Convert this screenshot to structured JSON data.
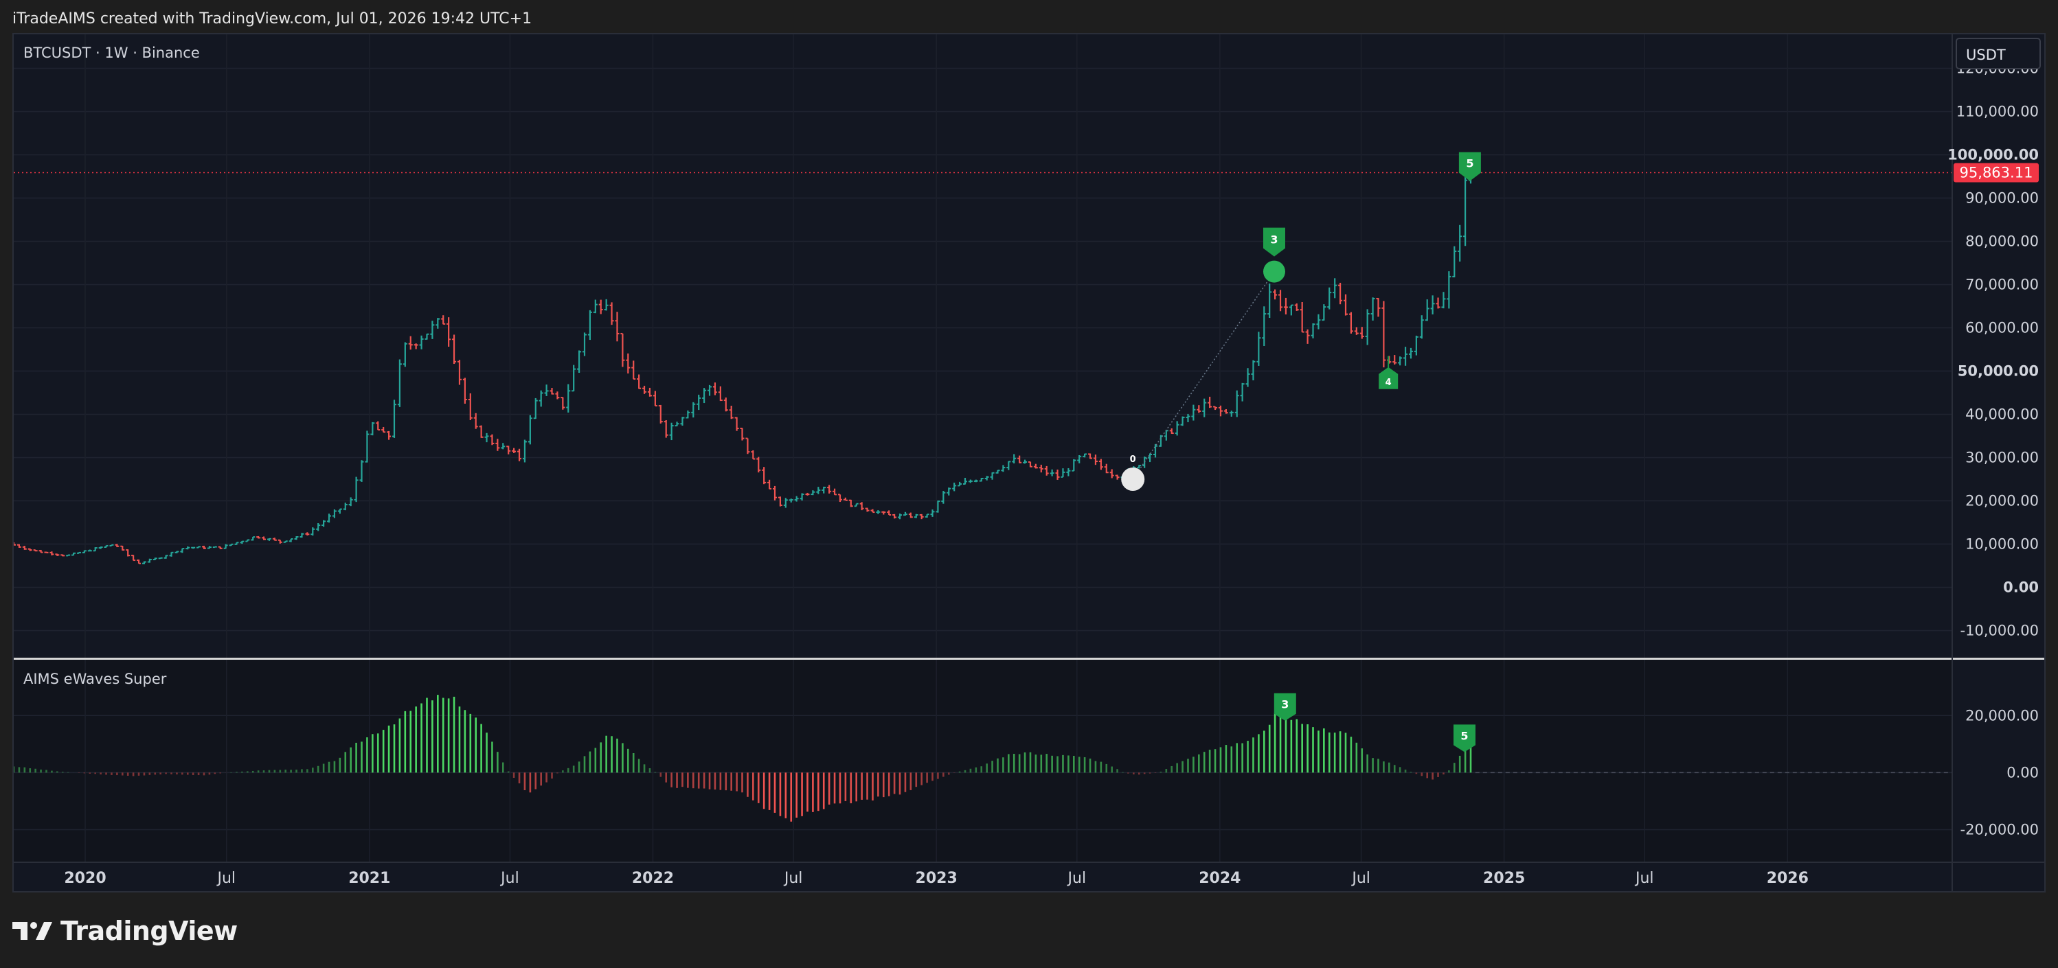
{
  "header": {
    "text": "iTradeAIMS created with TradingView.com, Jul 01, 2026 19:42 UTC+1"
  },
  "footer": {
    "logo_text": "TradingView",
    "logo_icon": "tradingview-logo-icon"
  },
  "main_pane": {
    "symbol_label": "BTCUSDT · 1W · Binance",
    "currency_button": "USDT",
    "price_axis": [
      "120,000.00",
      "110,000.00",
      "100,000.00",
      "90,000.00",
      "80,000.00",
      "70,000.00",
      "60,000.00",
      "50,000.00",
      "40,000.00",
      "30,000.00",
      "20,000.00",
      "10,000.00",
      "0.00",
      "-10,000.00"
    ],
    "last_price": "95,863.11",
    "colors": {
      "up": "#26a69a",
      "down": "#ef5350",
      "wave_marker": "#1e9e4a",
      "origin_marker": "#e8e8e8",
      "last_price_badge": "#f23645"
    }
  },
  "indicator_pane": {
    "title": "AIMS eWaves Super",
    "axis": [
      "20,000.00",
      "0.00",
      "-20,000.00"
    ],
    "colors": {
      "positive": "#4cd964",
      "negative": "#ef5350"
    }
  },
  "time_axis": [
    "2020",
    "Jul",
    "2021",
    "Jul",
    "2022",
    "Jul",
    "2023",
    "Jul",
    "2024",
    "Jul",
    "2025",
    "Jul",
    "2026"
  ],
  "chart_data": [
    {
      "type": "candlestick",
      "symbol": "BTCUSDT",
      "interval": "1W",
      "exchange": "Binance",
      "x_range": [
        "2019-10-01",
        "2026-08-01"
      ],
      "y_range": [
        -15000,
        125000
      ],
      "path_points": [
        [
          "2019-10-01",
          10200
        ],
        [
          "2019-11-01",
          8500
        ],
        [
          "2019-12-15",
          7300
        ],
        [
          "2020-01-20",
          8900
        ],
        [
          "2020-02-15",
          10000
        ],
        [
          "2020-03-15",
          5500
        ],
        [
          "2020-04-15",
          7000
        ],
        [
          "2020-05-15",
          9200
        ],
        [
          "2020-07-01",
          9200
        ],
        [
          "2020-08-15",
          11800
        ],
        [
          "2020-09-15",
          10500
        ],
        [
          "2020-10-20",
          12500
        ],
        [
          "2020-11-15",
          16000
        ],
        [
          "2020-12-15",
          20000
        ],
        [
          "2021-01-10",
          38000
        ],
        [
          "2021-02-01",
          34000
        ],
        [
          "2021-02-20",
          55000
        ],
        [
          "2021-03-15",
          58000
        ],
        [
          "2021-04-15",
          62000
        ],
        [
          "2021-05-20",
          37000
        ],
        [
          "2021-06-20",
          33000
        ],
        [
          "2021-07-20",
          30000
        ],
        [
          "2021-08-15",
          46000
        ],
        [
          "2021-09-15",
          42000
        ],
        [
          "2021-10-20",
          64000
        ],
        [
          "2021-11-10",
          67000
        ],
        [
          "2021-12-05",
          50000
        ],
        [
          "2022-01-10",
          42000
        ],
        [
          "2022-01-25",
          36000
        ],
        [
          "2022-03-25",
          47000
        ],
        [
          "2022-05-15",
          30000
        ],
        [
          "2022-06-18",
          19000
        ],
        [
          "2022-08-15",
          23500
        ],
        [
          "2022-09-15",
          19500
        ],
        [
          "2022-11-10",
          16500
        ],
        [
          "2022-12-30",
          16500
        ],
        [
          "2023-01-20",
          22500
        ],
        [
          "2023-03-15",
          26000
        ],
        [
          "2023-04-15",
          29500
        ],
        [
          "2023-06-15",
          25500
        ],
        [
          "2023-07-15",
          30500
        ],
        [
          "2023-08-25",
          26000
        ],
        [
          "2023-09-15",
          26500
        ],
        [
          "2023-10-25",
          34500
        ],
        [
          "2023-12-15",
          42000
        ],
        [
          "2024-01-20",
          40000
        ],
        [
          "2024-02-20",
          52000
        ],
        [
          "2024-03-10",
          69000
        ],
        [
          "2024-03-25",
          66000
        ],
        [
          "2024-04-15",
          63000
        ],
        [
          "2024-05-01",
          58000
        ],
        [
          "2024-06-05",
          70000
        ],
        [
          "2024-07-05",
          56000
        ],
        [
          "2024-07-28",
          68000
        ],
        [
          "2024-08-05",
          52000
        ],
        [
          "2024-09-05",
          54000
        ],
        [
          "2024-10-01",
          64000
        ],
        [
          "2024-10-25",
          68000
        ],
        [
          "2024-11-10",
          80000
        ],
        [
          "2024-11-20",
          94000
        ],
        [
          "2024-11-25",
          95863
        ]
      ],
      "last_price": 95863.11,
      "wave_labels": [
        {
          "label": "0",
          "x": "2023-09-11",
          "y": 25000,
          "marker": "circle",
          "color": "white"
        },
        {
          "label": "3",
          "x": "2024-03-11",
          "y": 73000,
          "marker": "circle",
          "color": "green"
        },
        {
          "label": "4",
          "x": "2024-08-05",
          "y": 49000,
          "marker": "flag",
          "color": "green"
        },
        {
          "label": "5",
          "x": "2024-11-18",
          "y": 95863,
          "marker": "flag",
          "color": "green"
        }
      ]
    },
    {
      "type": "bar",
      "title": "AIMS eWaves Super",
      "y_range": [
        -30000,
        35000
      ],
      "points": [
        [
          "2019-10-01",
          2200
        ],
        [
          "2019-12-01",
          300
        ],
        [
          "2020-01-20",
          -600
        ],
        [
          "2020-03-01",
          -1200
        ],
        [
          "2020-04-15",
          -500
        ],
        [
          "2020-06-01",
          -1000
        ],
        [
          "2020-07-01",
          0
        ],
        [
          "2020-08-15",
          800
        ],
        [
          "2020-10-15",
          1200
        ],
        [
          "2020-11-20",
          4500
        ],
        [
          "2020-12-20",
          11000
        ],
        [
          "2021-01-25",
          16500
        ],
        [
          "2021-02-25",
          22000
        ],
        [
          "2021-03-25",
          26500
        ],
        [
          "2021-04-25",
          25000
        ],
        [
          "2021-05-25",
          17000
        ],
        [
          "2021-06-15",
          7000
        ],
        [
          "2021-06-30",
          0
        ],
        [
          "2021-07-25",
          -7500
        ],
        [
          "2021-08-20",
          -3000
        ],
        [
          "2021-09-01",
          0
        ],
        [
          "2021-09-25",
          3000
        ],
        [
          "2021-10-15",
          8000
        ],
        [
          "2021-11-05",
          13500
        ],
        [
          "2021-11-25",
          10000
        ],
        [
          "2021-12-20",
          3000
        ],
        [
          "2022-01-05",
          0
        ],
        [
          "2022-01-25",
          -5000
        ],
        [
          "2022-03-15",
          -6000
        ],
        [
          "2022-04-25",
          -7000
        ],
        [
          "2022-05-15",
          -11000
        ],
        [
          "2022-06-10",
          -15500
        ],
        [
          "2022-06-25",
          -17500
        ],
        [
          "2022-07-15",
          -15000
        ],
        [
          "2022-08-20",
          -11000
        ],
        [
          "2022-09-25",
          -10000
        ],
        [
          "2022-11-15",
          -7500
        ],
        [
          "2022-12-25",
          -3000
        ],
        [
          "2023-01-25",
          0
        ],
        [
          "2023-02-25",
          2000
        ],
        [
          "2023-04-01",
          6000
        ],
        [
          "2023-04-25",
          7000
        ],
        [
          "2023-06-10",
          6000
        ],
        [
          "2023-07-10",
          5500
        ],
        [
          "2023-08-10",
          3000
        ],
        [
          "2023-08-30",
          0
        ],
        [
          "2023-09-15",
          -800
        ],
        [
          "2023-10-15",
          0
        ],
        [
          "2023-11-05",
          3000
        ],
        [
          "2023-12-15",
          8000
        ],
        [
          "2024-01-25",
          10000
        ],
        [
          "2024-02-20",
          13000
        ],
        [
          "2024-03-15",
          21000
        ],
        [
          "2024-04-10",
          19000
        ],
        [
          "2024-05-05",
          15000
        ],
        [
          "2024-06-10",
          14500
        ],
        [
          "2024-07-10",
          6000
        ],
        [
          "2024-08-10",
          3000
        ],
        [
          "2024-09-05",
          0
        ],
        [
          "2024-10-01",
          -2500
        ],
        [
          "2024-10-20",
          0
        ],
        [
          "2024-11-10",
          8000
        ],
        [
          "2024-11-25",
          17500
        ]
      ],
      "wave_labels": [
        {
          "label": "3",
          "x": "2024-03-25",
          "y": 24000
        },
        {
          "label": "5",
          "x": "2024-11-11",
          "y": 13000
        }
      ]
    }
  ]
}
